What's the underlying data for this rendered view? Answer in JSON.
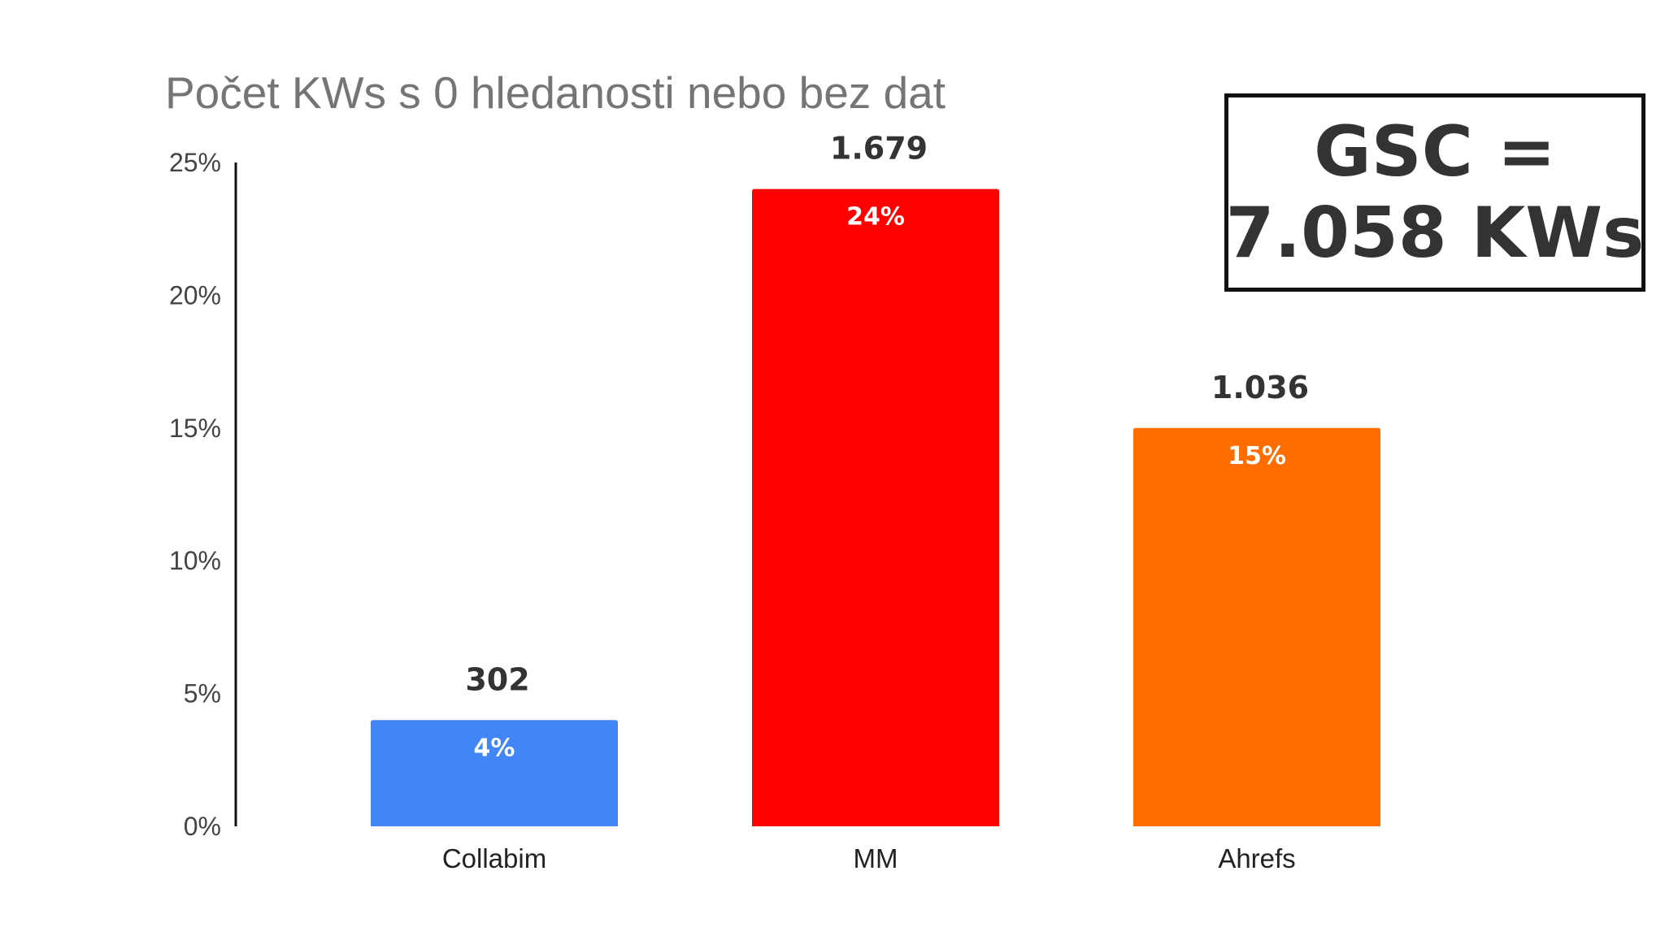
{
  "chart_data": {
    "type": "bar",
    "title": "Počet KWs s 0 hledanosti nebo bez dat",
    "xlabel": "",
    "ylabel": "",
    "ylim": [
      0,
      25
    ],
    "yticks": [
      "0%",
      "5%",
      "10%",
      "15%",
      "20%",
      "25%"
    ],
    "categories": [
      "Collabim",
      "MM",
      "Ahrefs"
    ],
    "values": [
      4,
      24,
      15
    ],
    "value_labels": [
      "4%",
      "24%",
      "15%"
    ],
    "count_labels": [
      "302",
      "1.679",
      "1.036"
    ],
    "colors": [
      "#4285F4",
      "#FF0000",
      "#FF6D01"
    ],
    "grid": false,
    "legend": "none"
  },
  "annotation": {
    "line1": "GSC =",
    "line2": "7.058 KWs"
  }
}
